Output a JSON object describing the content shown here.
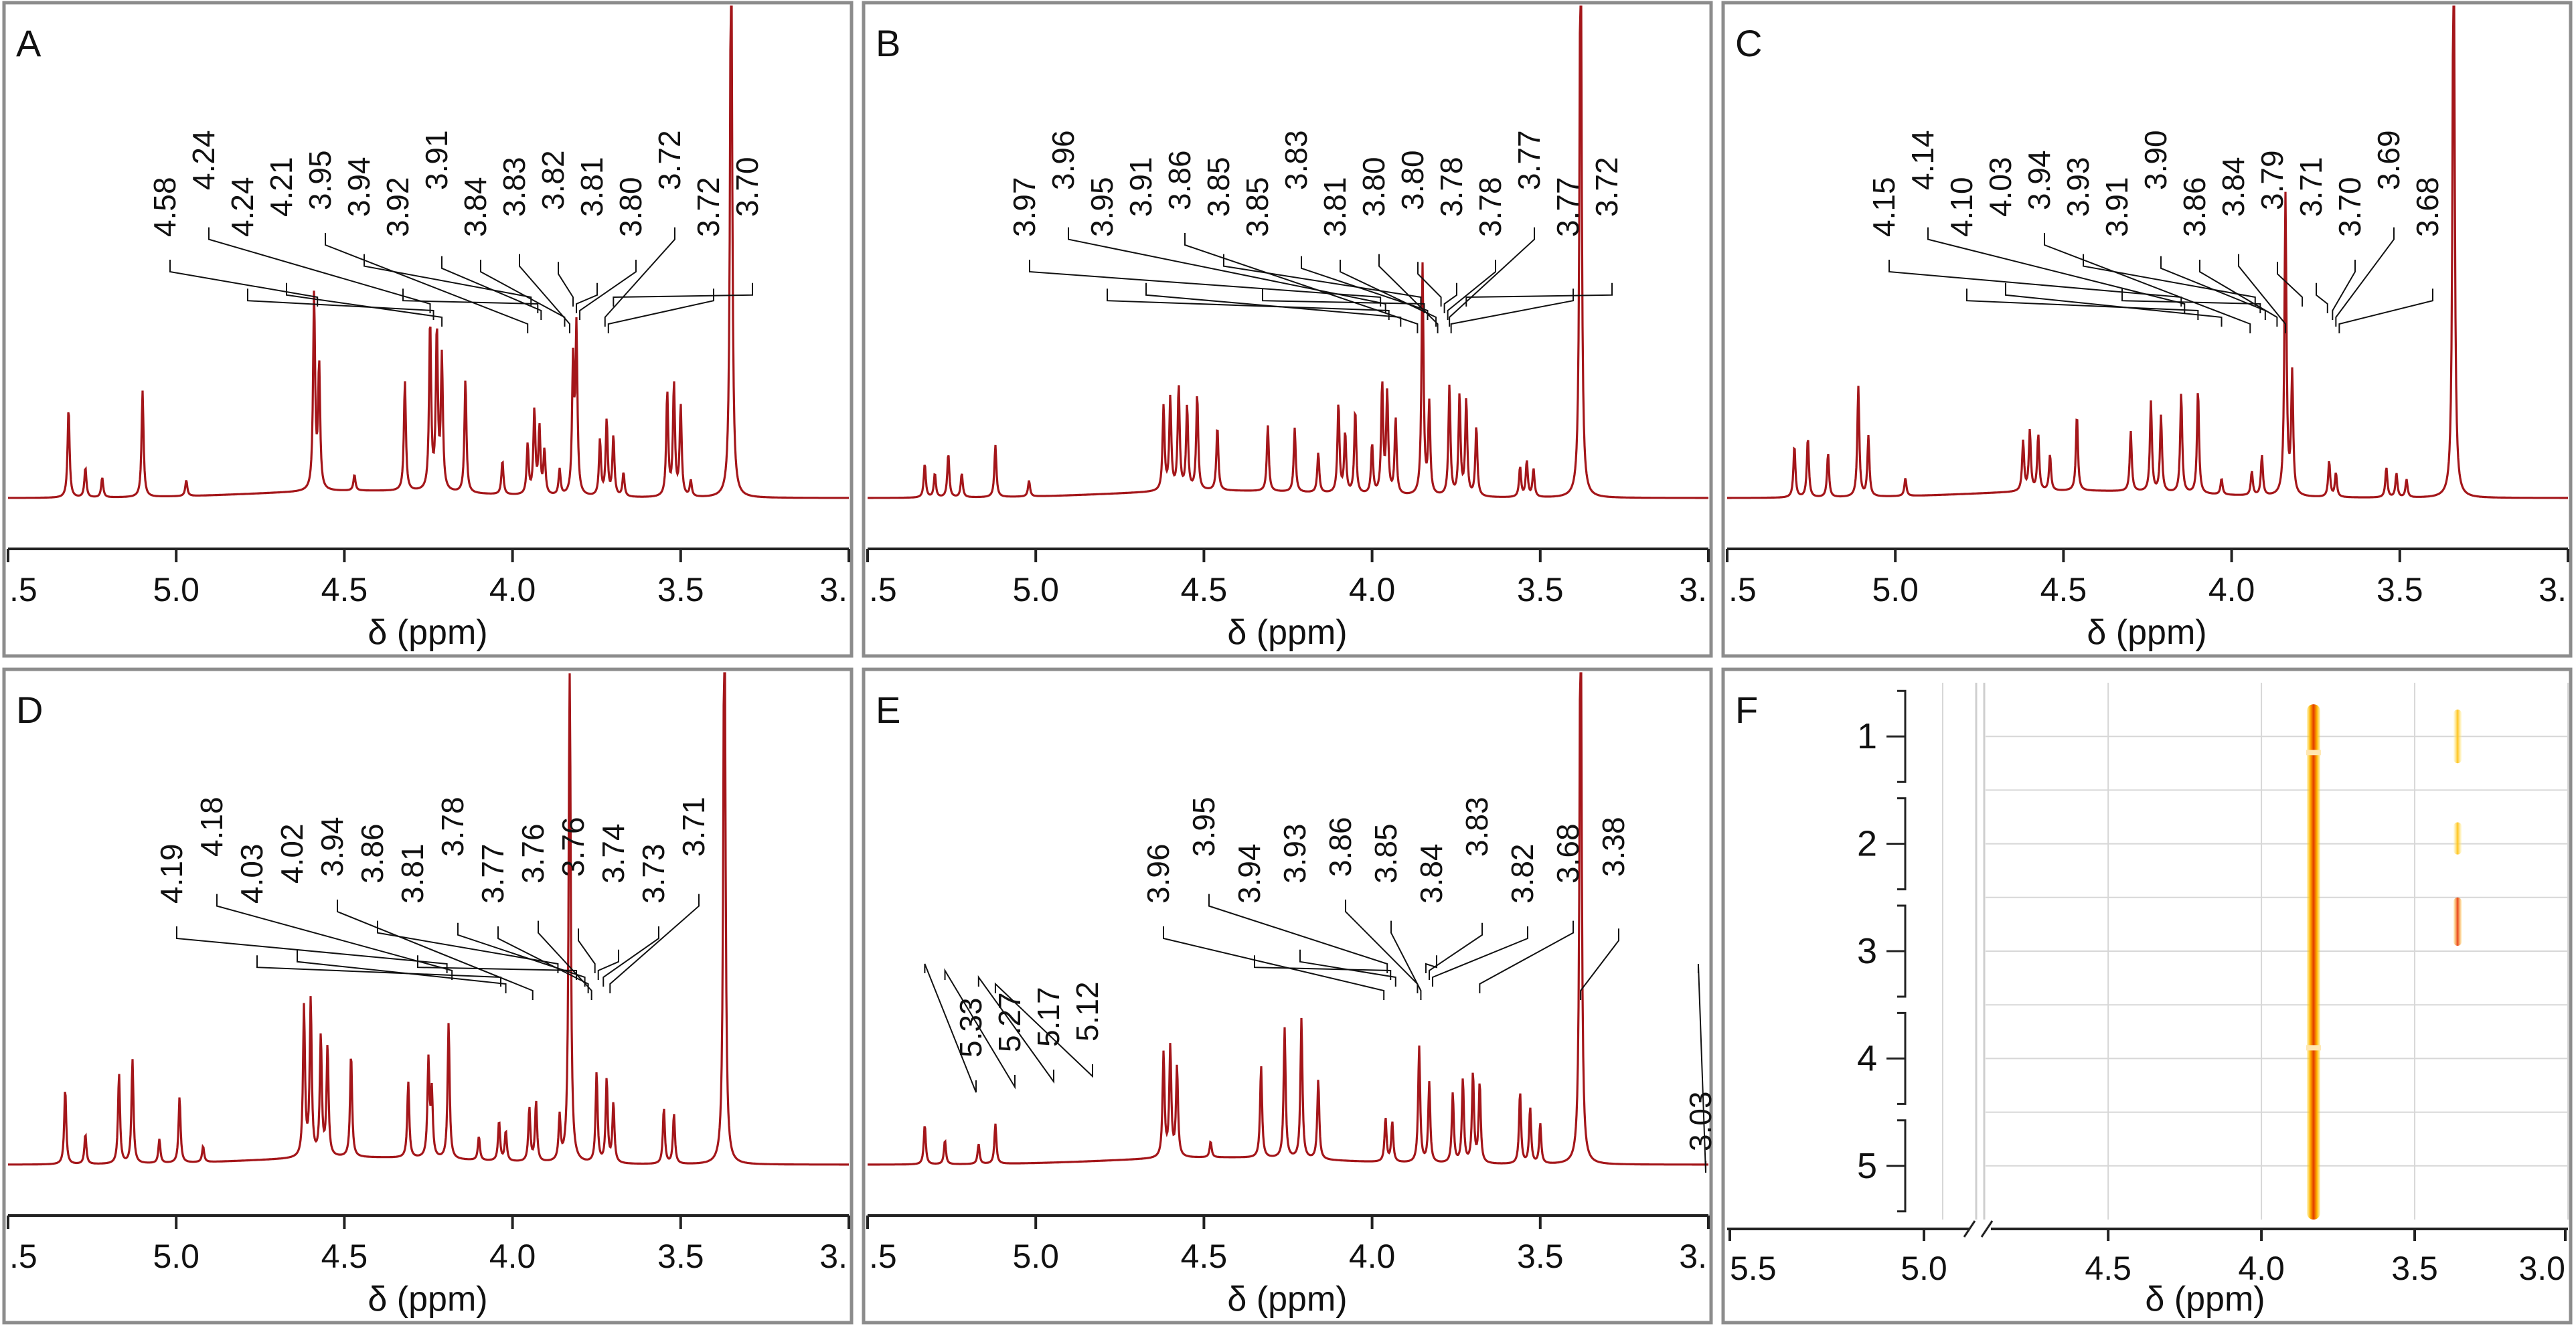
{
  "colors": {
    "spectrum": "#a4161a",
    "frame": "#8c8c8c",
    "axis": "#222222",
    "label": "#111111",
    "hsqc_core": "#e23a00",
    "hsqc_edge": "#ffcc1a"
  },
  "chart_data": [
    {
      "panel": "A",
      "type": "line",
      "xlabel": "δ (ppm)",
      "x_ticks": [
        ".5",
        "5.0",
        "4.5",
        "4.0",
        "3.5",
        "3."
      ],
      "x_tick_values": [
        5.5,
        5.0,
        4.5,
        4.0,
        3.5,
        3.0
      ],
      "xlim": [
        5.5,
        3.0
      ],
      "annotations": [
        "4.58",
        "4.24",
        "4.24",
        "4.21",
        "3.95",
        "3.94",
        "3.92",
        "3.91",
        "3.84",
        "3.83",
        "3.82",
        "3.81",
        "3.80",
        "3.72",
        "3.72",
        "3.70"
      ],
      "annotation_targets": [
        4.58,
        4.245,
        4.235,
        4.21,
        3.955,
        3.945,
        3.925,
        3.915,
        3.845,
        3.83,
        3.82,
        3.81,
        3.8,
        3.725,
        3.715,
        3.7
      ],
      "peaks": [
        [
          5.32,
          0.45
        ],
        [
          5.27,
          0.15
        ],
        [
          5.22,
          0.1
        ],
        [
          5.1,
          0.53
        ],
        [
          4.97,
          0.08
        ],
        [
          4.59,
          0.98
        ],
        [
          4.575,
          0.62
        ],
        [
          4.47,
          0.08
        ],
        [
          4.32,
          0.55
        ],
        [
          4.245,
          0.85
        ],
        [
          4.225,
          0.8
        ],
        [
          4.21,
          0.66
        ],
        [
          4.14,
          0.57
        ],
        [
          4.03,
          0.17
        ],
        [
          3.955,
          0.25
        ],
        [
          3.935,
          0.42
        ],
        [
          3.92,
          0.33
        ],
        [
          3.905,
          0.22
        ],
        [
          3.86,
          0.13
        ],
        [
          3.82,
          0.65
        ],
        [
          3.81,
          0.82
        ],
        [
          3.74,
          0.28
        ],
        [
          3.72,
          0.38
        ],
        [
          3.7,
          0.3
        ],
        [
          3.67,
          0.12
        ],
        [
          3.54,
          0.52
        ],
        [
          3.52,
          0.56
        ],
        [
          3.5,
          0.45
        ],
        [
          3.47,
          0.08
        ],
        [
          3.35,
          3.2
        ]
      ]
    },
    {
      "panel": "B",
      "type": "line",
      "xlabel": "δ (ppm)",
      "x_ticks": [
        ".5",
        "5.0",
        "4.5",
        "4.0",
        "3.5",
        "3."
      ],
      "x_tick_values": [
        5.5,
        5.0,
        4.5,
        4.0,
        3.5,
        3.0
      ],
      "xlim": [
        5.5,
        3.0
      ],
      "annotations": [
        "3.97",
        "3.96",
        "3.95",
        "3.91",
        "3.86",
        "3.85",
        "3.85",
        "3.83",
        "3.81",
        "3.80",
        "3.80",
        "3.78",
        "3.78",
        "3.77",
        "3.77",
        "3.72"
      ],
      "annotation_targets": [
        3.975,
        3.96,
        3.95,
        3.915,
        3.865,
        3.855,
        3.845,
        3.835,
        3.81,
        3.805,
        3.795,
        3.785,
        3.775,
        3.77,
        3.765,
        3.72
      ],
      "peaks": [
        [
          5.33,
          0.17
        ],
        [
          5.3,
          0.12
        ],
        [
          5.26,
          0.22
        ],
        [
          5.22,
          0.12
        ],
        [
          5.12,
          0.26
        ],
        [
          5.02,
          0.08
        ],
        [
          4.62,
          0.42
        ],
        [
          4.6,
          0.46
        ],
        [
          4.575,
          0.52
        ],
        [
          4.55,
          0.42
        ],
        [
          4.52,
          0.48
        ],
        [
          4.46,
          0.32
        ],
        [
          4.31,
          0.33
        ],
        [
          4.23,
          0.32
        ],
        [
          4.16,
          0.2
        ],
        [
          4.1,
          0.45
        ],
        [
          4.08,
          0.3
        ],
        [
          4.05,
          0.42
        ],
        [
          4.0,
          0.25
        ],
        [
          3.97,
          0.55
        ],
        [
          3.955,
          0.5
        ],
        [
          3.93,
          0.38
        ],
        [
          3.85,
          1.15
        ],
        [
          3.83,
          0.45
        ],
        [
          3.77,
          0.55
        ],
        [
          3.74,
          0.5
        ],
        [
          3.72,
          0.48
        ],
        [
          3.69,
          0.35
        ],
        [
          3.56,
          0.15
        ],
        [
          3.54,
          0.18
        ],
        [
          3.52,
          0.14
        ],
        [
          3.38,
          3.2
        ]
      ]
    },
    {
      "panel": "C",
      "type": "line",
      "xlabel": "δ (ppm)",
      "x_ticks": [
        ".5",
        "5.0",
        "4.5",
        "4.0",
        "3.5",
        "3."
      ],
      "x_tick_values": [
        5.5,
        5.0,
        4.5,
        4.0,
        3.5,
        3.0
      ],
      "xlim": [
        5.5,
        3.0
      ],
      "annotations": [
        "4.15",
        "4.14",
        "4.10",
        "4.03",
        "3.94",
        "3.93",
        "3.91",
        "3.90",
        "3.86",
        "3.84",
        "3.79",
        "3.71",
        "3.70",
        "3.69",
        "3.68"
      ],
      "annotation_targets": [
        4.15,
        4.14,
        4.1,
        4.03,
        3.945,
        3.93,
        3.915,
        3.9,
        3.865,
        3.84,
        3.79,
        3.715,
        3.7,
        3.69,
        3.68
      ],
      "peaks": [
        [
          5.3,
          0.26
        ],
        [
          5.26,
          0.3
        ],
        [
          5.2,
          0.22
        ],
        [
          5.11,
          0.55
        ],
        [
          5.08,
          0.3
        ],
        [
          4.97,
          0.09
        ],
        [
          4.62,
          0.25
        ],
        [
          4.6,
          0.3
        ],
        [
          4.575,
          0.28
        ],
        [
          4.54,
          0.18
        ],
        [
          4.46,
          0.38
        ],
        [
          4.3,
          0.3
        ],
        [
          4.24,
          0.45
        ],
        [
          4.21,
          0.38
        ],
        [
          4.15,
          0.5
        ],
        [
          4.1,
          0.52
        ],
        [
          4.03,
          0.08
        ],
        [
          3.94,
          0.12
        ],
        [
          3.91,
          0.2
        ],
        [
          3.84,
          1.5
        ],
        [
          3.82,
          0.6
        ],
        [
          3.71,
          0.18
        ],
        [
          3.69,
          0.12
        ],
        [
          3.54,
          0.15
        ],
        [
          3.51,
          0.12
        ],
        [
          3.48,
          0.09
        ],
        [
          3.34,
          3.2
        ]
      ]
    },
    {
      "panel": "D",
      "type": "line",
      "xlabel": "δ (ppm)",
      "x_ticks": [
        ".5",
        "5.0",
        "4.5",
        "4.0",
        "3.5",
        "3."
      ],
      "x_tick_values": [
        5.5,
        5.0,
        4.5,
        4.0,
        3.5,
        3.0
      ],
      "xlim": [
        5.5,
        3.0
      ],
      "annotations": [
        "4.19",
        "4.18",
        "4.03",
        "4.02",
        "3.94",
        "3.86",
        "3.81",
        "3.78",
        "3.77",
        "3.76",
        "3.76",
        "3.74",
        "3.73",
        "3.71"
      ],
      "annotation_targets": [
        4.195,
        4.18,
        4.035,
        4.02,
        3.94,
        3.865,
        3.81,
        3.785,
        3.775,
        3.765,
        3.755,
        3.745,
        3.73,
        3.71
      ],
      "peaks": [
        [
          5.33,
          0.38
        ],
        [
          5.27,
          0.15
        ],
        [
          5.17,
          0.45
        ],
        [
          5.13,
          0.52
        ],
        [
          5.05,
          0.12
        ],
        [
          4.99,
          0.33
        ],
        [
          4.92,
          0.08
        ],
        [
          4.62,
          0.75
        ],
        [
          4.6,
          0.78
        ],
        [
          4.57,
          0.6
        ],
        [
          4.55,
          0.55
        ],
        [
          4.48,
          0.52
        ],
        [
          4.31,
          0.38
        ],
        [
          4.25,
          0.48
        ],
        [
          4.24,
          0.32
        ],
        [
          4.19,
          0.68
        ],
        [
          4.1,
          0.12
        ],
        [
          4.04,
          0.2
        ],
        [
          4.02,
          0.15
        ],
        [
          3.95,
          0.27
        ],
        [
          3.93,
          0.3
        ],
        [
          3.86,
          0.22
        ],
        [
          3.83,
          2.6
        ],
        [
          3.75,
          0.45
        ],
        [
          3.72,
          0.42
        ],
        [
          3.7,
          0.3
        ],
        [
          3.55,
          0.28
        ],
        [
          3.52,
          0.25
        ],
        [
          3.37,
          3.2
        ]
      ]
    },
    {
      "panel": "E",
      "type": "line",
      "xlabel": "δ (ppm)",
      "x_ticks": [
        ".5",
        "5.0",
        "4.5",
        "4.0",
        "3.5",
        "3."
      ],
      "x_tick_values": [
        5.5,
        5.0,
        4.5,
        4.0,
        3.5,
        3.0
      ],
      "xlim": [
        5.5,
        3.0
      ],
      "annotations": [
        "5.33",
        "5.27",
        "5.17",
        "5.12",
        "3.96",
        "3.95",
        "3.94",
        "3.93",
        "3.86",
        "3.85",
        "3.84",
        "3.83",
        "3.82",
        "3.68",
        "3.38",
        "3.03"
      ],
      "annotation_targets": [
        5.33,
        5.27,
        5.17,
        5.12,
        3.965,
        3.955,
        3.945,
        3.93,
        3.865,
        3.855,
        3.84,
        3.83,
        3.82,
        3.68,
        3.38,
        3.03
      ],
      "peaks": [
        [
          5.33,
          0.2
        ],
        [
          5.27,
          0.12
        ],
        [
          5.17,
          0.1
        ],
        [
          5.12,
          0.2
        ],
        [
          4.62,
          0.52
        ],
        [
          4.6,
          0.55
        ],
        [
          4.58,
          0.45
        ],
        [
          4.48,
          0.08
        ],
        [
          4.33,
          0.46
        ],
        [
          4.26,
          0.65
        ],
        [
          4.21,
          0.7
        ],
        [
          4.16,
          0.4
        ],
        [
          3.96,
          0.22
        ],
        [
          3.94,
          0.2
        ],
        [
          3.86,
          0.58
        ],
        [
          3.83,
          0.4
        ],
        [
          3.76,
          0.35
        ],
        [
          3.73,
          0.42
        ],
        [
          3.7,
          0.45
        ],
        [
          3.68,
          0.4
        ],
        [
          3.56,
          0.36
        ],
        [
          3.53,
          0.28
        ],
        [
          3.5,
          0.2
        ],
        [
          3.38,
          3.2
        ]
      ]
    },
    {
      "panel": "F",
      "type": "heatmap",
      "xlabel": "δ (ppm)",
      "x_ticks": [
        "5.5",
        "5.0",
        "4.5",
        "4.0",
        "3.5",
        "3.0"
      ],
      "x_tick_values": [
        5.5,
        5.0,
        4.5,
        4.0,
        3.5,
        3.0
      ],
      "xlim": [
        5.5,
        3.0
      ],
      "y_ticks": [
        "1",
        "2",
        "3",
        "4",
        "5"
      ],
      "y_tick_values": [
        1,
        2,
        3,
        4,
        5
      ],
      "ylim": [
        0.5,
        5.5
      ],
      "axis_break_ppm": 4.9,
      "signals": [
        {
          "x": 3.83,
          "y_start": 0.7,
          "y_end": 5.55,
          "intensity": "strong"
        },
        {
          "x": 3.36,
          "y_start": 0.75,
          "y_end": 1.25,
          "intensity": "weak"
        },
        {
          "x": 3.36,
          "y_start": 1.8,
          "y_end": 2.1,
          "intensity": "weak"
        },
        {
          "x": 3.36,
          "y_start": 2.5,
          "y_end": 2.95,
          "intensity": "medium"
        }
      ]
    }
  ]
}
